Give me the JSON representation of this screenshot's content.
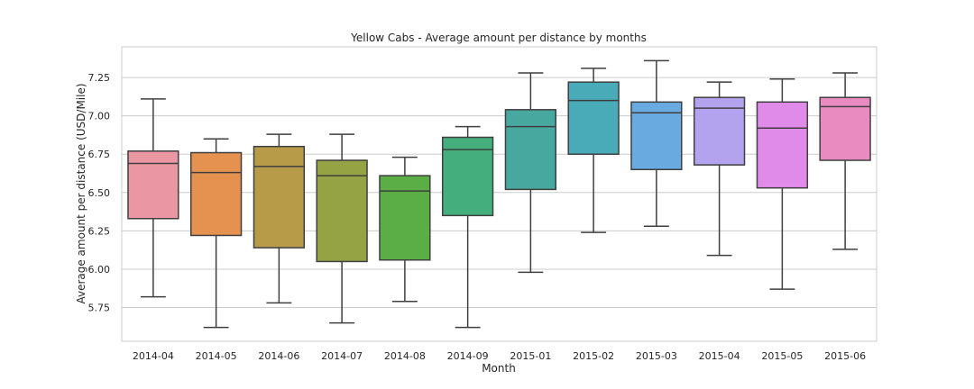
{
  "chart_data": {
    "type": "box",
    "title": "Yellow Cabs - Average amount per distance by months",
    "xlabel": "Month",
    "ylabel": "Average amount per distance (USD/Mile)",
    "ylim": [
      5.53,
      7.45
    ],
    "yticks": [
      "5.75",
      "6.00",
      "6.25",
      "6.50",
      "6.75",
      "7.00",
      "7.25"
    ],
    "grid": true,
    "categories": [
      "2014-04",
      "2014-05",
      "2014-06",
      "2014-07",
      "2014-08",
      "2014-09",
      "2015-01",
      "2015-02",
      "2015-03",
      "2015-04",
      "2015-05",
      "2015-06"
    ],
    "boxes": [
      {
        "whislo": 5.82,
        "q1": 6.33,
        "med": 6.69,
        "q3": 6.77,
        "whishi": 7.11
      },
      {
        "whislo": 5.62,
        "q1": 6.22,
        "med": 6.63,
        "q3": 6.76,
        "whishi": 6.85
      },
      {
        "whislo": 5.78,
        "q1": 6.14,
        "med": 6.67,
        "q3": 6.8,
        "whishi": 6.88
      },
      {
        "whislo": 5.65,
        "q1": 6.05,
        "med": 6.61,
        "q3": 6.71,
        "whishi": 6.88
      },
      {
        "whislo": 5.79,
        "q1": 6.06,
        "med": 6.51,
        "q3": 6.61,
        "whishi": 6.73
      },
      {
        "whislo": 5.62,
        "q1": 6.35,
        "med": 6.78,
        "q3": 6.86,
        "whishi": 6.93
      },
      {
        "whislo": 5.98,
        "q1": 6.52,
        "med": 6.93,
        "q3": 7.04,
        "whishi": 7.28
      },
      {
        "whislo": 6.24,
        "q1": 6.75,
        "med": 7.1,
        "q3": 7.22,
        "whishi": 7.31
      },
      {
        "whislo": 6.28,
        "q1": 6.65,
        "med": 7.02,
        "q3": 7.09,
        "whishi": 7.36
      },
      {
        "whislo": 6.09,
        "q1": 6.68,
        "med": 7.05,
        "q3": 7.12,
        "whishi": 7.22
      },
      {
        "whislo": 5.87,
        "q1": 6.53,
        "med": 6.92,
        "q3": 7.09,
        "whishi": 7.24
      },
      {
        "whislo": 6.13,
        "q1": 6.71,
        "med": 7.06,
        "q3": 7.12,
        "whishi": 7.28
      }
    ],
    "colors": [
      "#ea96a3",
      "#e5914f",
      "#b79b48",
      "#96a344",
      "#5bae45",
      "#45ae7d",
      "#47a8a0",
      "#49aab8",
      "#69abe0",
      "#b3a3ef",
      "#e08be9",
      "#e98bc1"
    ]
  }
}
